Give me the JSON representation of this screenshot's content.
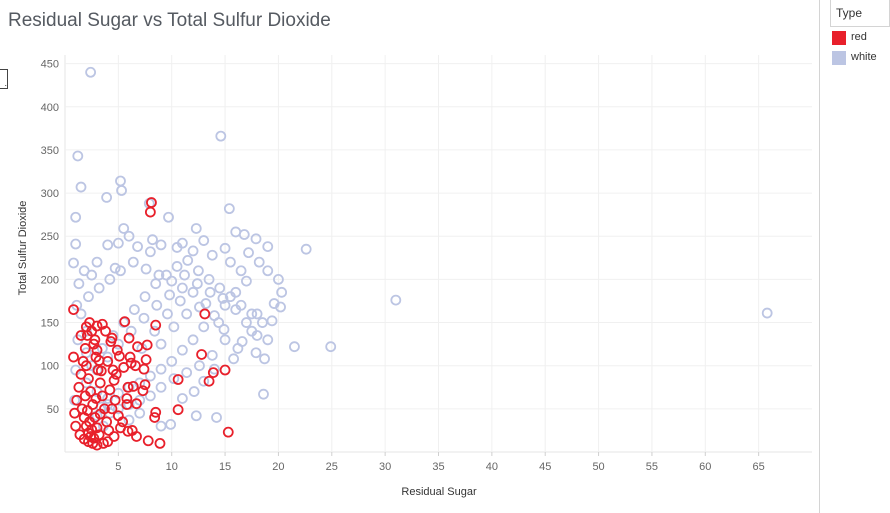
{
  "chart_data": {
    "type": "scatter",
    "title": "Residual Sugar vs Total Sulfur Dioxide",
    "xlabel": "Residual Sugar",
    "ylabel": "Total Sulfur Dioxide",
    "xlim": [
      0,
      70
    ],
    "ylim": [
      0,
      460
    ],
    "x_ticks": [
      5,
      10,
      15,
      20,
      25,
      30,
      35,
      40,
      45,
      50,
      55,
      60,
      65
    ],
    "y_ticks": [
      50,
      100,
      150,
      200,
      250,
      300,
      350,
      400,
      450
    ],
    "grid": true,
    "legend": {
      "title": "Type",
      "placement": "right",
      "entries": [
        {
          "label": "red",
          "color": "#e8202b"
        },
        {
          "label": "white",
          "color": "#bcc5e3"
        }
      ]
    },
    "series": [
      {
        "name": "white",
        "color": "#bcc5e3",
        "marker": "hollow-circle",
        "points": [
          [
            2.4,
            440
          ],
          [
            14.6,
            366
          ],
          [
            1.2,
            343
          ],
          [
            1.5,
            307
          ],
          [
            5.2,
            314
          ],
          [
            5.3,
            303
          ],
          [
            3.9,
            295
          ],
          [
            7.9,
            288
          ],
          [
            15.4,
            282
          ],
          [
            1.0,
            272
          ],
          [
            9.7,
            272
          ],
          [
            5.5,
            259
          ],
          [
            12.3,
            259
          ],
          [
            1.0,
            241
          ],
          [
            0.8,
            219
          ],
          [
            1.8,
            210
          ],
          [
            4.7,
            213
          ],
          [
            16.0,
            255
          ],
          [
            16.8,
            252
          ],
          [
            17.9,
            247
          ],
          [
            19.0,
            238
          ],
          [
            22.6,
            235
          ],
          [
            31.0,
            176
          ],
          [
            20.2,
            168
          ],
          [
            19.4,
            152
          ],
          [
            19.0,
            130
          ],
          [
            21.5,
            122
          ],
          [
            24.9,
            122
          ],
          [
            18.7,
            108
          ],
          [
            18.6,
            67
          ],
          [
            14.2,
            40
          ],
          [
            9.0,
            30
          ],
          [
            9.9,
            32
          ],
          [
            12.3,
            42
          ],
          [
            14.9,
            142
          ],
          [
            65.8,
            161
          ],
          [
            2.0,
            140
          ],
          [
            6.0,
            250
          ],
          [
            8.2,
            246
          ],
          [
            11.0,
            242
          ],
          [
            13.0,
            245
          ],
          [
            15.0,
            236
          ],
          [
            17.2,
            231
          ],
          [
            18.2,
            220
          ],
          [
            19.0,
            210
          ],
          [
            20.0,
            200
          ],
          [
            20.3,
            185
          ],
          [
            19.6,
            172
          ],
          [
            18.0,
            160
          ],
          [
            17.5,
            140
          ],
          [
            16.6,
            128
          ],
          [
            17.9,
            115
          ],
          [
            15.8,
            108
          ],
          [
            14.0,
            96
          ],
          [
            13.0,
            82
          ],
          [
            12.1,
            70
          ],
          [
            11.0,
            62
          ],
          [
            7.0,
            45
          ],
          [
            6.0,
            37
          ],
          [
            3.6,
            30
          ],
          [
            3.0,
            42
          ],
          [
            4.0,
            55
          ],
          [
            0.9,
            60
          ],
          [
            1.0,
            95
          ],
          [
            1.2,
            130
          ],
          [
            1.1,
            170
          ],
          [
            1.3,
            195
          ],
          [
            2.5,
            205
          ],
          [
            3.0,
            220
          ],
          [
            4.0,
            240
          ],
          [
            5.0,
            242
          ],
          [
            6.8,
            238
          ],
          [
            8.0,
            232
          ],
          [
            9.0,
            240
          ],
          [
            10.5,
            237
          ],
          [
            12.0,
            233
          ],
          [
            13.8,
            228
          ],
          [
            15.5,
            220
          ],
          [
            16.5,
            210
          ],
          [
            17.0,
            198
          ],
          [
            16.0,
            185
          ],
          [
            15.0,
            170
          ],
          [
            14.0,
            158
          ],
          [
            13.0,
            145
          ],
          [
            12.0,
            130
          ],
          [
            11.0,
            118
          ],
          [
            10.0,
            105
          ],
          [
            9.0,
            96
          ],
          [
            8.0,
            88
          ],
          [
            7.0,
            80
          ],
          [
            6.0,
            75
          ],
          [
            5.0,
            68
          ],
          [
            4.0,
            62
          ],
          [
            3.0,
            70
          ],
          [
            2.0,
            80
          ],
          [
            2.5,
            100
          ],
          [
            3.5,
            120
          ],
          [
            4.5,
            135
          ],
          [
            5.5,
            150
          ],
          [
            6.5,
            165
          ],
          [
            7.5,
            180
          ],
          [
            8.5,
            195
          ],
          [
            9.5,
            205
          ],
          [
            10.5,
            215
          ],
          [
            11.5,
            222
          ],
          [
            12.5,
            210
          ],
          [
            13.5,
            200
          ],
          [
            14.5,
            190
          ],
          [
            15.5,
            180
          ],
          [
            16.5,
            170
          ],
          [
            17.5,
            160
          ],
          [
            18.5,
            150
          ],
          [
            7.2,
            120
          ],
          [
            8.4,
            140
          ],
          [
            9.6,
            160
          ],
          [
            10.8,
            175
          ],
          [
            12.0,
            185
          ],
          [
            13.2,
            172
          ],
          [
            14.4,
            150
          ],
          [
            9.0,
            125
          ],
          [
            10.2,
            145
          ],
          [
            11.4,
            160
          ],
          [
            12.6,
            168
          ],
          [
            11.0,
            190
          ],
          [
            9.8,
            182
          ],
          [
            8.6,
            170
          ],
          [
            7.4,
            155
          ],
          [
            6.2,
            140
          ],
          [
            5.0,
            125
          ],
          [
            4.0,
            110
          ],
          [
            3.0,
            95
          ],
          [
            2.0,
            115
          ],
          [
            1.5,
            160
          ],
          [
            2.2,
            180
          ],
          [
            3.2,
            190
          ],
          [
            4.2,
            200
          ],
          [
            5.2,
            210
          ],
          [
            6.4,
            220
          ],
          [
            7.6,
            212
          ],
          [
            8.8,
            205
          ],
          [
            10.0,
            198
          ],
          [
            11.2,
            205
          ],
          [
            12.4,
            195
          ],
          [
            13.6,
            185
          ],
          [
            14.8,
            178
          ],
          [
            16.0,
            165
          ],
          [
            17.0,
            150
          ],
          [
            18.0,
            135
          ],
          [
            16.2,
            120
          ],
          [
            15.0,
            130
          ],
          [
            13.8,
            112
          ],
          [
            12.6,
            100
          ],
          [
            11.4,
            92
          ],
          [
            10.2,
            85
          ],
          [
            9.0,
            75
          ],
          [
            8.0,
            65
          ],
          [
            7.0,
            60
          ],
          [
            6.0,
            55
          ],
          [
            5.0,
            50
          ],
          [
            4.2,
            45
          ],
          [
            3.4,
            52
          ]
        ]
      },
      {
        "name": "red",
        "color": "#e8202b",
        "marker": "hollow-circle",
        "points": [
          [
            8.1,
            289
          ],
          [
            8.0,
            278
          ],
          [
            0.8,
            165
          ],
          [
            5.6,
            151
          ],
          [
            8.5,
            147
          ],
          [
            13.1,
            160
          ],
          [
            6.0,
            132
          ],
          [
            6.8,
            122
          ],
          [
            7.7,
            124
          ],
          [
            7.6,
            107
          ],
          [
            12.8,
            113
          ],
          [
            6.2,
            103
          ],
          [
            6.6,
            100
          ],
          [
            5.5,
            98
          ],
          [
            7.4,
            96
          ],
          [
            13.9,
            92
          ],
          [
            15.0,
            95
          ],
          [
            10.6,
            84
          ],
          [
            13.5,
            82
          ],
          [
            7.5,
            78
          ],
          [
            5.9,
            75
          ],
          [
            6.4,
            76
          ],
          [
            7.3,
            71
          ],
          [
            5.8,
            62
          ],
          [
            5.8,
            55
          ],
          [
            6.7,
            56
          ],
          [
            10.6,
            49
          ],
          [
            8.5,
            46
          ],
          [
            8.4,
            40
          ],
          [
            5.9,
            24
          ],
          [
            6.3,
            25
          ],
          [
            6.7,
            18
          ],
          [
            7.8,
            13
          ],
          [
            8.9,
            10
          ],
          [
            15.3,
            23
          ],
          [
            6.1,
            110
          ],
          [
            4.0,
            105
          ],
          [
            4.5,
            95
          ],
          [
            4.8,
            90
          ],
          [
            3.5,
            148
          ],
          [
            3.0,
            146
          ],
          [
            4.4,
            132
          ],
          [
            4.9,
            118
          ],
          [
            5.1,
            111
          ],
          [
            4.6,
            83
          ],
          [
            4.2,
            72
          ],
          [
            4.7,
            60
          ],
          [
            4.4,
            50
          ],
          [
            5.0,
            42
          ],
          [
            5.4,
            35
          ],
          [
            5.2,
            28
          ],
          [
            4.6,
            18
          ],
          [
            4.0,
            12
          ],
          [
            3.6,
            10
          ],
          [
            3.0,
            8
          ],
          [
            2.6,
            10
          ],
          [
            2.2,
            12
          ],
          [
            1.8,
            15
          ],
          [
            1.4,
            20
          ],
          [
            1.0,
            30
          ],
          [
            0.9,
            45
          ],
          [
            1.1,
            60
          ],
          [
            1.3,
            75
          ],
          [
            1.5,
            90
          ],
          [
            1.7,
            105
          ],
          [
            1.9,
            120
          ],
          [
            2.1,
            135
          ],
          [
            2.3,
            150
          ],
          [
            2.5,
            140
          ],
          [
            2.7,
            125
          ],
          [
            2.9,
            110
          ],
          [
            3.1,
            95
          ],
          [
            3.3,
            80
          ],
          [
            3.5,
            65
          ],
          [
            3.7,
            50
          ],
          [
            3.9,
            35
          ],
          [
            4.1,
            25
          ],
          [
            2.0,
            100
          ],
          [
            2.2,
            85
          ],
          [
            2.4,
            70
          ],
          [
            2.6,
            55
          ],
          [
            2.8,
            40
          ],
          [
            3.0,
            28
          ],
          [
            3.2,
            20
          ],
          [
            1.6,
            50
          ],
          [
            1.8,
            40
          ],
          [
            2.0,
            30
          ],
          [
            2.2,
            22
          ],
          [
            2.4,
            18
          ],
          [
            2.8,
            130
          ],
          [
            3.0,
            118
          ],
          [
            3.2,
            106
          ],
          [
            3.4,
            94
          ],
          [
            1.9,
            65
          ],
          [
            2.1,
            48
          ],
          [
            2.3,
            35
          ],
          [
            2.5,
            26
          ],
          [
            2.7,
            16
          ],
          [
            0.8,
            110
          ],
          [
            3.8,
            140
          ],
          [
            4.3,
            128
          ],
          [
            2.0,
            145
          ],
          [
            1.5,
            135
          ],
          [
            2.9,
            62
          ],
          [
            3.3,
            44
          ]
        ]
      }
    ]
  }
}
